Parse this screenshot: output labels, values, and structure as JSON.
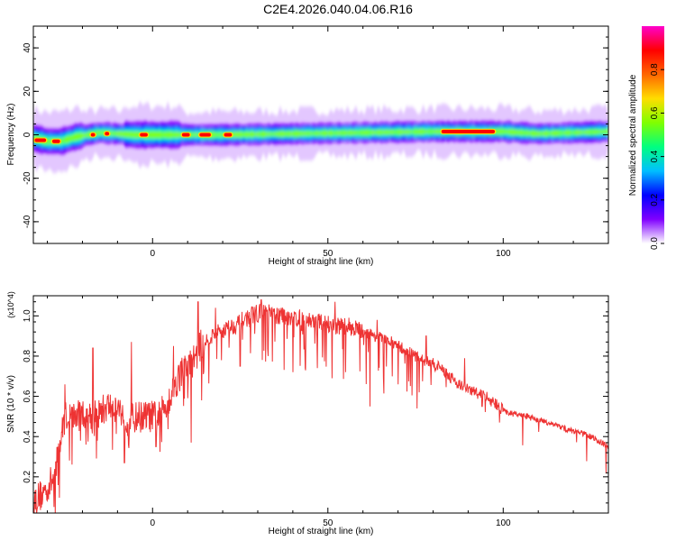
{
  "title": "C2E4.2026.040.04.06.R16",
  "colors": {
    "snr_line": "#ee3333",
    "spectrogram_colormap": [
      "#ffffff",
      "#8000ff",
      "#0000ff",
      "#00bfff",
      "#00ff80",
      "#80ff00",
      "#ffdd00",
      "#ff6600",
      "#ff0000",
      "#ff00cc"
    ]
  },
  "chart_data": [
    {
      "type": "heatmap",
      "name": "spectrogram",
      "xlabel": "Height of straight line (km)",
      "ylabel": "Frequency (Hz)",
      "xlim": [
        -34,
        130
      ],
      "ylim": [
        -50,
        50
      ],
      "xticks": [
        0,
        50,
        100
      ],
      "xtick_labels": [
        "0",
        "50",
        "100"
      ],
      "yticks": [
        -40,
        -20,
        0,
        20,
        40
      ],
      "ytick_labels": [
        "-40",
        "-20",
        "0",
        "20",
        "40"
      ],
      "colorbar": {
        "label": "Normalized spectral amplitude",
        "range": [
          0,
          1
        ],
        "ticks": [
          0.0,
          0.2,
          0.4,
          0.6,
          0.8
        ],
        "tick_labels": [
          "0.0",
          "0.2",
          "0.4",
          "0.6",
          "0.8"
        ]
      },
      "ridge_center_hz": [
        {
          "x": -34,
          "y": -1.5
        },
        {
          "x": -30,
          "y": -3
        },
        {
          "x": -26,
          "y": -3
        },
        {
          "x": -22,
          "y": -1
        },
        {
          "x": -15,
          "y": 1
        },
        {
          "x": -5,
          "y": 0
        },
        {
          "x": 0,
          "y": 0
        },
        {
          "x": 10,
          "y": 0
        },
        {
          "x": 20,
          "y": 0
        },
        {
          "x": 40,
          "y": 0.5
        },
        {
          "x": 60,
          "y": 1
        },
        {
          "x": 80,
          "y": 1.5
        },
        {
          "x": 100,
          "y": 1.5
        },
        {
          "x": 110,
          "y": 0.5
        },
        {
          "x": 130,
          "y": 1.5
        }
      ],
      "peak_regions": [
        {
          "x": [
            -34,
            -30
          ],
          "y": -2.5
        },
        {
          "x": [
            -29,
            -26
          ],
          "y": -3
        },
        {
          "x": [
            -18,
            -16
          ],
          "y": 0
        },
        {
          "x": [
            -14,
            -12
          ],
          "y": 0.5
        },
        {
          "x": [
            -4,
            -1
          ],
          "y": 0
        },
        {
          "x": [
            8,
            11
          ],
          "y": 0
        },
        {
          "x": [
            13,
            17
          ],
          "y": 0
        },
        {
          "x": [
            20,
            23
          ],
          "y": 0
        },
        {
          "x": [
            82,
            98
          ],
          "y": 1.5
        }
      ]
    },
    {
      "type": "line",
      "name": "snr",
      "xlabel": "Height of straight line (km)",
      "ylabel": "SNR (10 * v/v)",
      "scale_label": "(x10^4)",
      "xlim": [
        -34,
        130
      ],
      "ylim": [
        0.02,
        1.1
      ],
      "xticks": [
        0,
        50,
        100
      ],
      "xtick_labels": [
        "0",
        "50",
        "100"
      ],
      "yticks": [
        0.2,
        0.4,
        0.6,
        0.8,
        1.0
      ],
      "ytick_labels": [
        "0.2",
        "0.4",
        "0.6",
        "0.8",
        "1.0"
      ],
      "envelope": {
        "x": [
          -34,
          -31,
          -28,
          -25,
          -22,
          -19,
          -16,
          -13,
          -10,
          -7,
          -4,
          -1,
          2,
          5,
          8,
          11,
          14,
          17,
          20,
          23,
          26,
          29,
          32,
          35,
          38,
          41,
          44,
          47,
          50,
          53,
          56,
          59,
          62,
          65,
          68,
          71,
          74,
          77,
          80,
          83,
          86,
          89,
          92,
          95,
          98,
          101,
          104,
          107,
          110,
          113,
          116,
          119,
          122,
          125,
          128,
          130
        ],
        "y": [
          0.08,
          0.12,
          0.2,
          0.5,
          0.5,
          0.52,
          0.5,
          0.55,
          0.55,
          0.48,
          0.5,
          0.5,
          0.5,
          0.6,
          0.72,
          0.76,
          0.86,
          0.9,
          0.93,
          0.95,
          0.98,
          1.01,
          1.02,
          1.0,
          1.0,
          0.99,
          0.98,
          0.97,
          0.96,
          0.95,
          0.95,
          0.93,
          0.91,
          0.89,
          0.87,
          0.84,
          0.81,
          0.78,
          0.76,
          0.73,
          0.68,
          0.64,
          0.62,
          0.6,
          0.56,
          0.52,
          0.51,
          0.5,
          0.48,
          0.47,
          0.45,
          0.43,
          0.42,
          0.4,
          0.37,
          0.35
        ]
      },
      "dips": [
        {
          "x": -27,
          "y": 0.35
        },
        {
          "x": -19,
          "y": 0.36
        },
        {
          "x": -8,
          "y": 0.27
        },
        {
          "x": 1,
          "y": 0.35
        },
        {
          "x": 11,
          "y": 0.37
        },
        {
          "x": 14,
          "y": 0.58
        },
        {
          "x": 25,
          "y": 0.75
        },
        {
          "x": 33,
          "y": 0.8
        },
        {
          "x": 40,
          "y": 0.72
        },
        {
          "x": 47,
          "y": 0.74
        },
        {
          "x": 55,
          "y": 0.72
        },
        {
          "x": 62,
          "y": 0.55
        },
        {
          "x": 70,
          "y": 0.66
        },
        {
          "x": 76,
          "y": 0.62
        },
        {
          "x": 94,
          "y": 0.55
        },
        {
          "x": 99,
          "y": 0.47
        }
      ],
      "spikes": [
        {
          "x": -34,
          "y": 0.05
        },
        {
          "x": -25,
          "y": 0.66
        },
        {
          "x": -17,
          "y": 0.84
        },
        {
          "x": -6,
          "y": 0.87
        },
        {
          "x": 6,
          "y": 0.85
        },
        {
          "x": 13,
          "y": 1.07
        },
        {
          "x": 18,
          "y": 1.04
        },
        {
          "x": 31,
          "y": 1.08
        },
        {
          "x": 52,
          "y": 1.07
        },
        {
          "x": 64,
          "y": 0.98
        },
        {
          "x": 78,
          "y": 0.9
        },
        {
          "x": 89,
          "y": 0.79
        }
      ]
    }
  ]
}
